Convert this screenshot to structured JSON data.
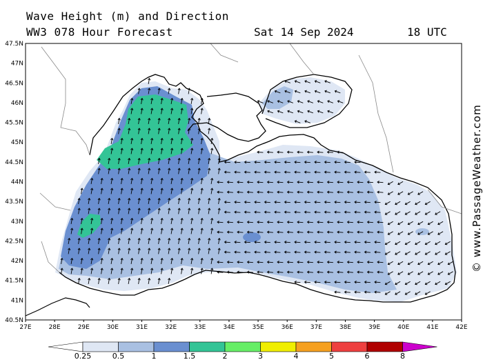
{
  "header": {
    "line1": "Wave Height (m) and Direction",
    "line2": "WW3 078 Hour Forecast",
    "date": "Sat 14 Sep 2024",
    "time": "18 UTC"
  },
  "map": {
    "lon_range": [
      27,
      42
    ],
    "lat_range": [
      40.5,
      47.5
    ],
    "lon_ticks": [
      "27E",
      "28E",
      "29E",
      "30E",
      "31E",
      "32E",
      "33E",
      "34E",
      "35E",
      "36E",
      "37E",
      "38E",
      "39E",
      "40E",
      "41E",
      "42E"
    ],
    "lat_ticks": [
      "47.5N",
      "47N",
      "46.5N",
      "46N",
      "45.5N",
      "45N",
      "44.5N",
      "44N",
      "43.5N",
      "43N",
      "42.5N",
      "42N",
      "41.5N",
      "41N",
      "40.5N"
    ],
    "land_color": "#ffffff",
    "arrow_color": "#000000"
  },
  "legend": {
    "labels": [
      "0.25",
      "0.5",
      "1",
      "1.5",
      "2",
      "3",
      "4",
      "5",
      "6",
      "8"
    ],
    "colors": [
      "#ffffff",
      "#dfe7f4",
      "#a9c0e2",
      "#6a8fd0",
      "#33c496",
      "#66ee66",
      "#f0ee00",
      "#f5a020",
      "#ee4040",
      "#b00000",
      "#cc00cc"
    ]
  },
  "copyright": "© www.PassageWeather.com"
}
